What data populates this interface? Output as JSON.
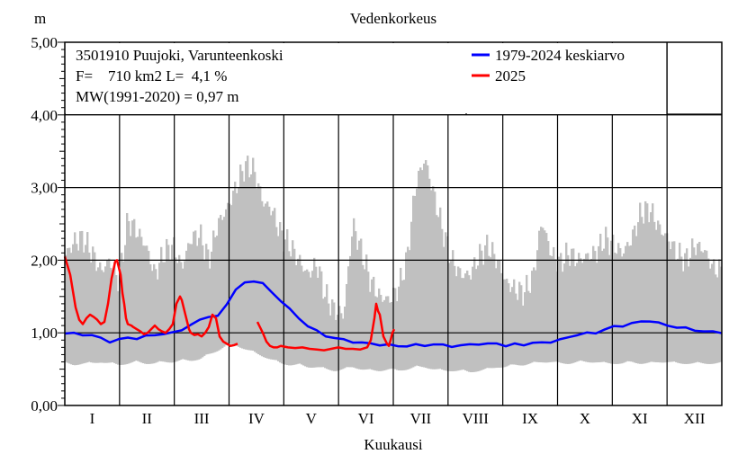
{
  "chart_data": {
    "type": "line",
    "title": "Vedenkorkeus",
    "ylabel": "m",
    "xlabel": "Kuukausi",
    "ylim": [
      0,
      5
    ],
    "xlim": [
      0,
      365
    ],
    "yticks": [
      "0,00",
      "1,00",
      "2,00",
      "3,00",
      "4,00",
      "5,00"
    ],
    "months": [
      "I",
      "II",
      "III",
      "IV",
      "V",
      "VI",
      "VII",
      "VIII",
      "IX",
      "X",
      "XI",
      "XII"
    ],
    "info": {
      "station": "3501910 Puujoki, Varunteenkoski",
      "area": "F=    710 km2 L=  4,1 %",
      "mw": "MW(1991-2020) = 0,97 m"
    },
    "band": {
      "name": "",
      "color": "#c0c0c0",
      "x": [
        0,
        5,
        10,
        15,
        20,
        25,
        30,
        35,
        40,
        45,
        50,
        55,
        60,
        65,
        70,
        75,
        80,
        85,
        90,
        95,
        100,
        105,
        110,
        115,
        120,
        125,
        130,
        135,
        140,
        145,
        150,
        155,
        160,
        165,
        170,
        175,
        180,
        185,
        190,
        195,
        200,
        205,
        210,
        215,
        220,
        225,
        230,
        235,
        240,
        245,
        250,
        255,
        260,
        265,
        270,
        275,
        280,
        285,
        290,
        295,
        300,
        305,
        310,
        315,
        320,
        325,
        330,
        335,
        340,
        345,
        350,
        355,
        360,
        365
      ],
      "high": [
        2.05,
        2.25,
        2.3,
        2.1,
        1.85,
        2.0,
        1.7,
        2.55,
        2.4,
        2.2,
        1.8,
        2.1,
        2.2,
        1.9,
        2.3,
        2.35,
        2.0,
        2.5,
        2.7,
        3.0,
        3.3,
        3.25,
        2.8,
        2.7,
        2.35,
        2.2,
        2.0,
        1.8,
        1.95,
        1.5,
        1.3,
        1.25,
        2.5,
        2.1,
        1.7,
        1.5,
        1.45,
        1.6,
        2.0,
        3.05,
        3.4,
        2.9,
        2.4,
        2.0,
        1.8,
        1.8,
        2.05,
        2.2,
        2.0,
        1.7,
        1.6,
        1.55,
        1.75,
        2.55,
        2.1,
        1.95,
        2.1,
        2.0,
        2.05,
        2.1,
        2.3,
        2.2,
        2.1,
        2.3,
        2.65,
        2.7,
        2.45,
        2.3,
        2.1,
        2.0,
        2.2,
        2.15,
        1.9,
        1.85
      ],
      "low": [
        0.6,
        0.58,
        0.6,
        0.6,
        0.62,
        0.6,
        0.58,
        0.6,
        0.62,
        0.6,
        0.6,
        0.62,
        0.62,
        0.64,
        0.64,
        0.66,
        0.72,
        0.78,
        0.85,
        0.85,
        0.8,
        0.75,
        0.7,
        0.65,
        0.6,
        0.58,
        0.58,
        0.55,
        0.55,
        0.52,
        0.5,
        0.52,
        0.55,
        0.52,
        0.5,
        0.5,
        0.52,
        0.5,
        0.52,
        0.55,
        0.55,
        0.52,
        0.5,
        0.5,
        0.5,
        0.48,
        0.5,
        0.52,
        0.55,
        0.55,
        0.58,
        0.58,
        0.6,
        0.62,
        0.62,
        0.6,
        0.6,
        0.62,
        0.62,
        0.62,
        0.6,
        0.6,
        0.6,
        0.62,
        0.6,
        0.6,
        0.62,
        0.62,
        0.6,
        0.6,
        0.6,
        0.6,
        0.6,
        0.6
      ]
    },
    "series": [
      {
        "name": "1979-2024 keskiarvo",
        "color": "#0000ff",
        "x": [
          0,
          5,
          10,
          15,
          20,
          25,
          30,
          35,
          40,
          45,
          50,
          55,
          60,
          65,
          70,
          75,
          80,
          85,
          90,
          95,
          100,
          105,
          110,
          115,
          120,
          125,
          130,
          135,
          140,
          145,
          150,
          155,
          160,
          165,
          170,
          175,
          180,
          185,
          190,
          195,
          200,
          205,
          210,
          215,
          220,
          225,
          230,
          235,
          240,
          245,
          250,
          255,
          260,
          265,
          270,
          275,
          280,
          285,
          290,
          295,
          300,
          305,
          310,
          315,
          320,
          325,
          330,
          335,
          340,
          345,
          350,
          355,
          360,
          365
        ],
        "y": [
          0.99,
          0.99,
          0.98,
          0.96,
          0.93,
          0.88,
          0.9,
          0.94,
          0.92,
          0.95,
          0.98,
          0.98,
          1.0,
          1.05,
          1.1,
          1.18,
          1.23,
          1.22,
          1.4,
          1.6,
          1.68,
          1.72,
          1.68,
          1.55,
          1.45,
          1.32,
          1.2,
          1.1,
          1.02,
          0.96,
          0.93,
          0.9,
          0.88,
          0.86,
          0.85,
          0.84,
          0.83,
          0.82,
          0.82,
          0.83,
          0.83,
          0.84,
          0.83,
          0.82,
          0.82,
          0.84,
          0.85,
          0.84,
          0.86,
          0.82,
          0.84,
          0.84,
          0.86,
          0.86,
          0.88,
          0.9,
          0.94,
          0.98,
          0.99,
          1.0,
          1.05,
          1.08,
          1.1,
          1.13,
          1.15,
          1.17,
          1.13,
          1.1,
          1.08,
          1.06,
          1.04,
          1.02,
          1.01,
          1.01
        ]
      },
      {
        "name": "2025",
        "color": "#ff0000",
        "segments": [
          {
            "x": [
              0,
              3,
              6,
              8,
              10,
              12,
              14,
              16,
              18,
              20,
              22,
              24,
              26,
              28,
              29,
              30,
              31,
              32,
              33,
              34,
              35,
              37,
              38,
              40,
              42,
              44,
              46,
              48,
              50,
              52,
              54,
              56,
              58,
              60,
              62,
              64,
              65,
              66,
              67,
              68,
              69,
              70,
              72,
              74,
              76,
              78,
              80,
              82,
              84,
              86,
              88,
              90,
              92,
              94,
              96
            ],
            "y": [
              2.05,
              1.8,
              1.35,
              1.18,
              1.12,
              1.2,
              1.25,
              1.22,
              1.18,
              1.12,
              1.15,
              1.4,
              1.75,
              1.98,
              2.0,
              1.9,
              1.8,
              1.55,
              1.4,
              1.2,
              1.12,
              1.1,
              1.08,
              1.05,
              1.02,
              0.98,
              1.0,
              1.05,
              1.1,
              1.05,
              1.02,
              1.0,
              1.05,
              1.12,
              1.4,
              1.5,
              1.45,
              1.35,
              1.25,
              1.15,
              1.05,
              1.0,
              0.97,
              0.98,
              0.95,
              1.0,
              1.08,
              1.25,
              1.2,
              0.95,
              0.88,
              0.85,
              0.82,
              0.83,
              0.85
            ]
          },
          {
            "x": [
              107,
              108,
              110,
              112,
              114,
              116,
              118,
              120,
              124,
              128,
              132,
              136,
              140,
              144,
              148,
              152,
              156,
              160,
              164,
              168,
              170,
              172,
              173,
              174,
              175,
              176,
              177,
              178,
              179,
              180,
              181,
              182,
              183
            ],
            "y": [
              1.15,
              1.1,
              1.0,
              0.88,
              0.82,
              0.8,
              0.8,
              0.82,
              0.8,
              0.79,
              0.8,
              0.78,
              0.77,
              0.76,
              0.78,
              0.8,
              0.78,
              0.78,
              0.77,
              0.8,
              0.9,
              1.2,
              1.4,
              1.3,
              1.25,
              1.1,
              0.95,
              0.9,
              0.85,
              0.82,
              0.9,
              1.0,
              1.05
            ]
          }
        ]
      }
    ]
  }
}
